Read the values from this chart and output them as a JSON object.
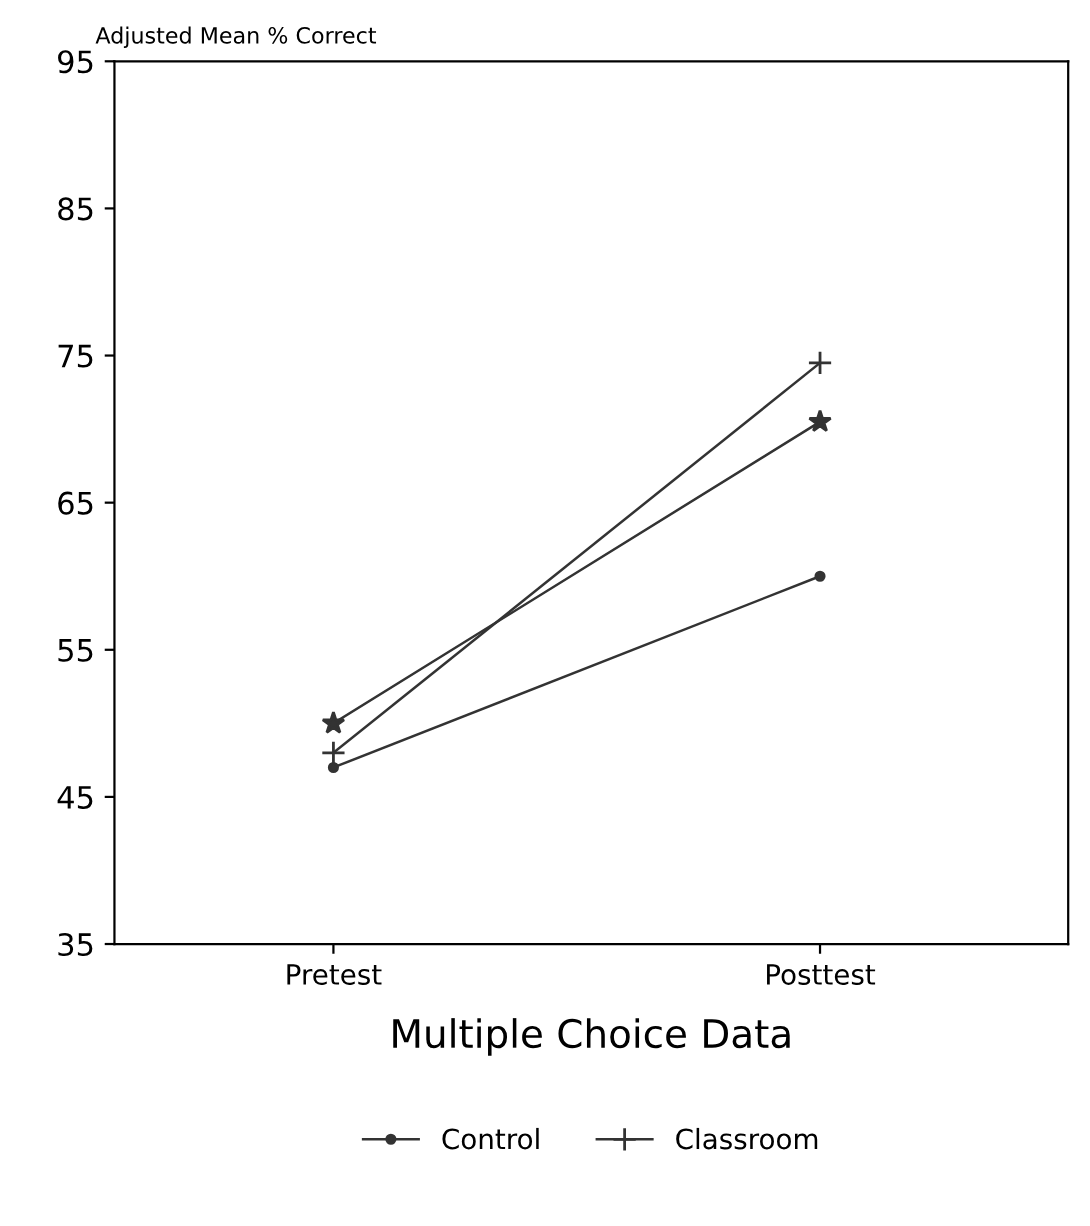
{
  "chart_data": {
    "type": "line",
    "ylabel": "Adjusted Mean % Correct",
    "xlabel": "Multiple Choice Data",
    "categories": [
      "Pretest",
      "Posttest"
    ],
    "series": [
      {
        "name": "Control",
        "color": "#333333",
        "values": [
          47,
          60
        ],
        "marker": "circle"
      },
      {
        "name": "Classroom",
        "color": "#333333",
        "values": [
          48,
          74.5
        ],
        "marker": "cross"
      },
      {
        "color": "#333333",
        "values": [
          50,
          70.5
        ],
        "marker": "star"
      }
    ],
    "ylim": [
      35,
      95
    ],
    "yticks": [
      35,
      45,
      55,
      65,
      75,
      85,
      95
    ],
    "grid": false,
    "legend": "bottom",
    "line_style": "solid"
  }
}
